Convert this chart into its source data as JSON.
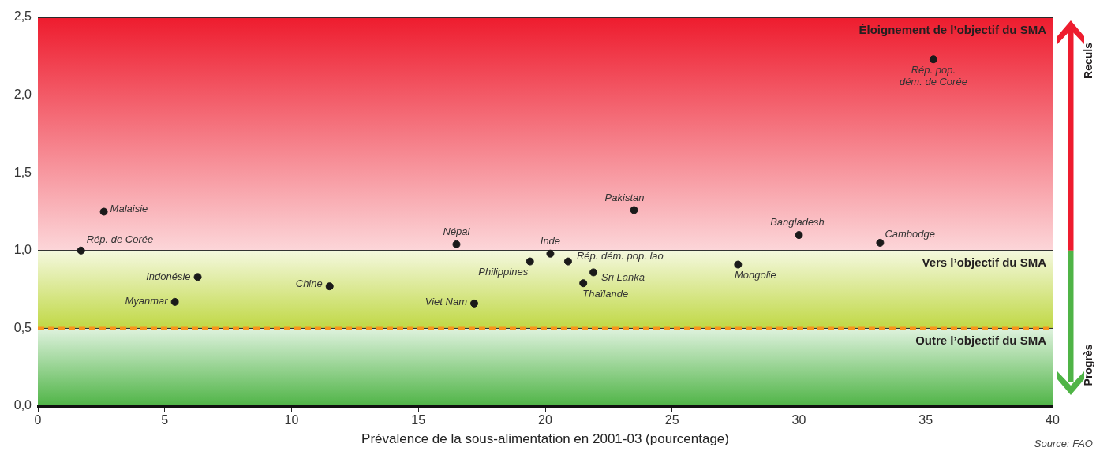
{
  "chart_data": {
    "type": "scatter",
    "xlabel": "Prévalence de la sous-alimentation en 2001-03 (pourcentage)",
    "xlim": [
      0,
      40
    ],
    "xticks": [
      0,
      5,
      10,
      15,
      20,
      25,
      30,
      35,
      40
    ],
    "ylim": [
      0,
      2.5
    ],
    "yticks": [
      {
        "value": 0,
        "label": "0,0"
      },
      {
        "value": 0.5,
        "label": "0,5"
      },
      {
        "value": 1,
        "label": "1,0"
      },
      {
        "value": 1.5,
        "label": "1,5"
      },
      {
        "value": 2,
        "label": "2,0"
      },
      {
        "value": 2.5,
        "label": "2,5"
      }
    ],
    "grid": "y",
    "legend": false,
    "marker": "circle",
    "bands": [
      {
        "axis": "y",
        "from": 1,
        "to": 2.5,
        "label": "Éloignement de l’objectif du SMA",
        "color": "#ee1c2e"
      },
      {
        "axis": "y",
        "from": 0.5,
        "to": 1,
        "label": "Vers l’objectif du SMA",
        "color": "#c0d845"
      },
      {
        "axis": "y",
        "from": 0,
        "to": 0.5,
        "label": "Outre l’objectif du SMA",
        "color": "#4fb446"
      }
    ],
    "ref_lines": [
      {
        "axis": "y",
        "value": 0.5,
        "color": "#f7941d",
        "line_style": "dashed"
      }
    ],
    "annotations": [
      "Reculs",
      "Progrès",
      "Source: FAO"
    ],
    "series": [
      {
        "name": "Malaisie",
        "color": "#1a1a1a",
        "x": [
          2.6
        ],
        "values": [
          1.25
        ]
      },
      {
        "name": "Rép. de Corée",
        "color": "#1a1a1a",
        "x": [
          1.7
        ],
        "values": [
          1.0
        ]
      },
      {
        "name": "Indonésie",
        "color": "#1a1a1a",
        "x": [
          6.3
        ],
        "values": [
          0.83
        ]
      },
      {
        "name": "Myanmar",
        "color": "#1a1a1a",
        "x": [
          5.4
        ],
        "values": [
          0.67
        ]
      },
      {
        "name": "Chine",
        "color": "#1a1a1a",
        "x": [
          11.5
        ],
        "values": [
          0.77
        ]
      },
      {
        "name": "Népal",
        "color": "#1a1a1a",
        "x": [
          16.5
        ],
        "values": [
          1.04
        ]
      },
      {
        "name": "Viet Nam",
        "color": "#1a1a1a",
        "x": [
          17.2
        ],
        "values": [
          0.66
        ]
      },
      {
        "name": "Philippines",
        "color": "#1a1a1a",
        "x": [
          19.4
        ],
        "values": [
          0.93
        ]
      },
      {
        "name": "Inde",
        "color": "#1a1a1a",
        "x": [
          20.2
        ],
        "values": [
          0.98
        ]
      },
      {
        "name": "Rép. dém. pop. lao",
        "color": "#1a1a1a",
        "x": [
          20.9
        ],
        "values": [
          0.93
        ]
      },
      {
        "name": "Sri Lanka",
        "color": "#1a1a1a",
        "x": [
          21.9
        ],
        "values": [
          0.86
        ]
      },
      {
        "name": "Thaïlande",
        "color": "#1a1a1a",
        "x": [
          21.5
        ],
        "values": [
          0.79
        ]
      },
      {
        "name": "Pakistan",
        "color": "#1a1a1a",
        "x": [
          23.5
        ],
        "values": [
          1.26
        ]
      },
      {
        "name": "Mongolie",
        "color": "#1a1a1a",
        "x": [
          27.6
        ],
        "values": [
          0.91
        ]
      },
      {
        "name": "Bangladesh",
        "color": "#1a1a1a",
        "x": [
          30.0
        ],
        "values": [
          1.1
        ]
      },
      {
        "name": "Cambodge",
        "color": "#1a1a1a",
        "x": [
          33.2
        ],
        "values": [
          1.05
        ]
      },
      {
        "name": "Rép. pop. dém. de Corée",
        "color": "#1a1a1a",
        "x": [
          35.3
        ],
        "values": [
          2.23
        ]
      }
    ]
  }
}
